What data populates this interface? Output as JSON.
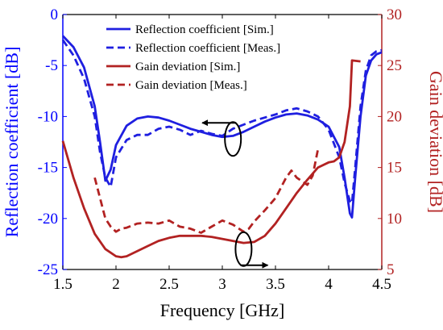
{
  "chart_data": {
    "type": "line",
    "title": "",
    "xlabel": "Frequency [GHz]",
    "ylabel": "Reflection coefficient [dB]",
    "y2label": "Gain deviation [dB]",
    "xlim": [
      1.5,
      4.5
    ],
    "ylim": [
      -25,
      0
    ],
    "y2lim": [
      5,
      30
    ],
    "x_ticks": [
      "1.5",
      "2",
      "2.5",
      "3",
      "3.5",
      "4",
      "4.5"
    ],
    "y_ticks": [
      "0",
      "-5",
      "-10",
      "-15",
      "-20",
      "-25"
    ],
    "y2_ticks": [
      "30",
      "25",
      "20",
      "15",
      "10",
      "5"
    ],
    "grid": false,
    "legend_position": "top",
    "colors": {
      "left_axis": "#0000ff",
      "right_axis": "#b22222"
    },
    "series": [
      {
        "name": "Reflection coefficient [Sim.]",
        "axis": "left",
        "color": "#1f1fe0",
        "style": "solid",
        "x": [
          1.5,
          1.6,
          1.7,
          1.8,
          1.85,
          1.9,
          1.95,
          2.0,
          2.1,
          2.2,
          2.3,
          2.4,
          2.5,
          2.6,
          2.7,
          2.8,
          2.9,
          3.0,
          3.1,
          3.2,
          3.3,
          3.4,
          3.5,
          3.6,
          3.7,
          3.8,
          3.9,
          4.0,
          4.1,
          4.15,
          4.2,
          4.22,
          4.25,
          4.3,
          4.35,
          4.4,
          4.45,
          4.5
        ],
        "y": [
          -2.1,
          -3.2,
          -5.2,
          -9.0,
          -12.5,
          -16.3,
          -15.2,
          -12.8,
          -10.9,
          -10.2,
          -10.0,
          -10.1,
          -10.4,
          -10.8,
          -11.2,
          -11.5,
          -11.8,
          -12.0,
          -11.9,
          -11.5,
          -11.0,
          -10.5,
          -10.1,
          -9.8,
          -9.7,
          -9.9,
          -10.3,
          -11.0,
          -13.0,
          -16.0,
          -19.5,
          -19.9,
          -16.0,
          -10.0,
          -6.0,
          -4.5,
          -3.9,
          -3.7
        ]
      },
      {
        "name": "Reflection coefficient [Meas.]",
        "axis": "left",
        "color": "#1f1fe0",
        "style": "dashed",
        "x": [
          1.5,
          1.6,
          1.7,
          1.8,
          1.85,
          1.9,
          1.95,
          2.0,
          2.1,
          2.2,
          2.3,
          2.4,
          2.5,
          2.6,
          2.7,
          2.8,
          2.9,
          3.0,
          3.1,
          3.2,
          3.3,
          3.4,
          3.5,
          3.6,
          3.7,
          3.8,
          3.9,
          4.0,
          4.1,
          4.15,
          4.2,
          4.22,
          4.25,
          4.3,
          4.35,
          4.4,
          4.45,
          4.5
        ],
        "y": [
          -2.5,
          -4.0,
          -6.3,
          -10.0,
          -13.5,
          -16.0,
          -16.9,
          -14.0,
          -12.3,
          -11.8,
          -11.8,
          -11.2,
          -11.0,
          -11.3,
          -11.8,
          -11.4,
          -11.7,
          -11.9,
          -11.2,
          -10.8,
          -10.4,
          -10.1,
          -9.8,
          -9.4,
          -9.2,
          -9.5,
          -10.0,
          -11.3,
          -14.0,
          -16.5,
          -18.3,
          -18.5,
          -15.0,
          -9.0,
          -5.5,
          -4.0,
          -3.6,
          -3.5
        ]
      },
      {
        "name": "Gain deviation [Sim.]",
        "axis": "right",
        "color": "#b22222",
        "style": "solid",
        "x": [
          1.5,
          1.6,
          1.7,
          1.8,
          1.9,
          2.0,
          2.05,
          2.1,
          2.2,
          2.3,
          2.4,
          2.5,
          2.6,
          2.7,
          2.8,
          2.9,
          3.0,
          3.1,
          3.2,
          3.3,
          3.4,
          3.5,
          3.6,
          3.7,
          3.8,
          3.9,
          4.0,
          4.05,
          4.1,
          4.15,
          4.2,
          4.22,
          4.3
        ],
        "y": [
          17.6,
          14.0,
          11.0,
          8.5,
          7.0,
          6.3,
          6.2,
          6.3,
          6.8,
          7.3,
          7.8,
          8.1,
          8.3,
          8.3,
          8.3,
          8.2,
          8.0,
          7.8,
          7.6,
          7.7,
          8.3,
          9.5,
          11.0,
          12.5,
          13.8,
          15.0,
          15.5,
          15.6,
          16.0,
          17.5,
          21.0,
          25.5,
          25.4
        ]
      },
      {
        "name": "Gain deviation [Meas.]",
        "axis": "right",
        "color": "#b22222",
        "style": "dashed",
        "x": [
          1.8,
          1.85,
          1.9,
          1.95,
          2.0,
          2.05,
          2.1,
          2.2,
          2.3,
          2.4,
          2.5,
          2.6,
          2.7,
          2.8,
          2.9,
          3.0,
          3.1,
          3.2,
          3.25,
          3.3,
          3.4,
          3.5,
          3.55,
          3.6,
          3.65,
          3.7,
          3.8,
          3.85,
          3.9
        ],
        "y": [
          14.0,
          12.0,
          10.0,
          9.2,
          8.7,
          9.0,
          9.1,
          9.5,
          9.6,
          9.5,
          9.8,
          9.2,
          9.0,
          8.6,
          9.2,
          9.8,
          9.4,
          8.7,
          9.0,
          9.7,
          10.8,
          12.0,
          13.0,
          14.0,
          14.7,
          14.0,
          13.3,
          14.2,
          16.8
        ]
      }
    ],
    "annotations": [
      {
        "marker": "ellipse",
        "arrow": "left",
        "points_to": "left axis",
        "x": 3.1,
        "y": -12.2
      },
      {
        "marker": "ellipse",
        "arrow": "right",
        "points_to": "right axis",
        "x": 3.2,
        "y2": 7.0
      }
    ]
  }
}
